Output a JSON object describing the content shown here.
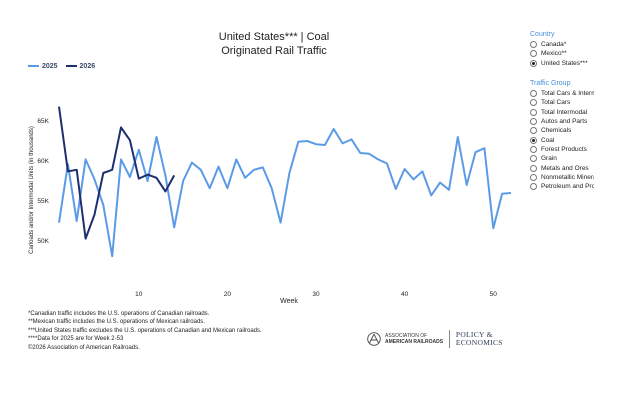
{
  "chart_data": {
    "type": "line",
    "title": "United States*** | Coal",
    "subtitle": "Originated Rail Traffic",
    "xlabel": "Week",
    "ylabel": "Carloads and/or Intermodal Units (in thousands)",
    "xlim": [
      1,
      52
    ],
    "ylim": [
      47,
      68
    ],
    "xticks": [
      10,
      20,
      30,
      40,
      50
    ],
    "xtick_labels": [
      "10",
      "20",
      "30",
      "40",
      "50"
    ],
    "yticks": [
      50,
      55,
      60,
      65
    ],
    "ytick_labels": [
      "50K",
      "55K",
      "60K",
      "65K"
    ],
    "grid": false,
    "legend": "top-left",
    "series": [
      {
        "name": "2025",
        "color": "#5b9be6",
        "x": [
          1,
          2,
          3,
          4,
          5,
          6,
          7,
          8,
          9,
          10,
          11,
          12,
          13,
          14,
          15,
          16,
          17,
          18,
          19,
          20,
          21,
          22,
          23,
          24,
          25,
          26,
          27,
          28,
          29,
          30,
          31,
          32,
          33,
          34,
          35,
          36,
          37,
          38,
          39,
          40,
          41,
          42,
          43,
          44,
          45,
          46,
          47,
          48,
          49,
          50,
          51,
          52
        ],
        "y": [
          52.3,
          59.6,
          52.5,
          60.2,
          57.7,
          54.5,
          48.1,
          60.2,
          58.0,
          61.4,
          57.5,
          63.0,
          58.2,
          51.7,
          57.5,
          59.8,
          58.9,
          56.6,
          59.3,
          56.6,
          60.2,
          57.9,
          58.9,
          59.2,
          56.6,
          52.3,
          58.5,
          62.4,
          62.5,
          62.1,
          62.0,
          64.0,
          62.2,
          62.7,
          61.0,
          60.9,
          60.2,
          59.7,
          56.5,
          59.0,
          57.7,
          58.7,
          55.7,
          57.3,
          56.4,
          63.0,
          57.0,
          61.1,
          61.6,
          51.6,
          55.9,
          56.0
        ]
      },
      {
        "name": "2026",
        "color": "#1d2f6f",
        "x": [
          1,
          2,
          3,
          4,
          5,
          6,
          7,
          8,
          9,
          10,
          11,
          12,
          13,
          14
        ],
        "y": [
          66.8,
          58.7,
          58.9,
          50.3,
          53.3,
          58.5,
          58.9,
          64.2,
          62.6,
          57.8,
          58.3,
          57.9,
          56.2,
          58.2
        ]
      }
    ]
  },
  "legend": {
    "y2025": "2025",
    "y2026": "2026"
  },
  "country": {
    "header": "Country",
    "options": [
      "Canada*",
      "Mexico**",
      "United States***"
    ],
    "selected": 2
  },
  "traffic_group": {
    "header": "Traffic Group",
    "options": [
      "Total Cars & Intermodal",
      "Total Cars",
      "Total Intermodal",
      "Autos and Parts",
      "Chemicals",
      "Coal",
      "Forest Products",
      "Grain",
      "Metals and Ores",
      "Nonmetallic Minerals",
      "Petroleum and Products"
    ],
    "selected": 5
  },
  "footnotes": [
    "*Canadian traffic includes the U.S. operations of Canadian railroads.",
    "**Mexican traffic includes the U.S. operations of Mexican railroads.",
    "***United States traffic excludes the U.S. operations of Canadian and Mexican railroads.",
    "****Data for 2025 are for Week 2-53",
    "©2026 Association of American Railroads."
  ],
  "logos": {
    "aar_line1": "ASSOCIATION OF",
    "aar_line2": "AMERICAN RAILROADS",
    "pe_line1": "POLICY &",
    "pe_line2": "ECONOMICS"
  }
}
